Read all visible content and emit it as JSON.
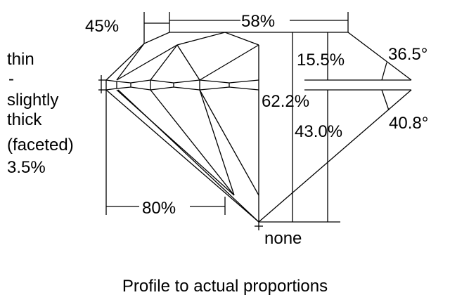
{
  "labels": {
    "crown_height_left": "45%",
    "table": "58%",
    "crown_height": "15.5%",
    "crown_angle": "36.5°",
    "total_depth": "62.2%",
    "pavilion_depth": "43.0%",
    "pavilion_angle": "40.8°",
    "lower_half": "80%",
    "culet": "none",
    "girdle_lines": [
      "thin",
      "-",
      "slightly",
      "thick",
      "(faceted)",
      "3.5%"
    ]
  },
  "caption": "Profile to actual proportions"
}
